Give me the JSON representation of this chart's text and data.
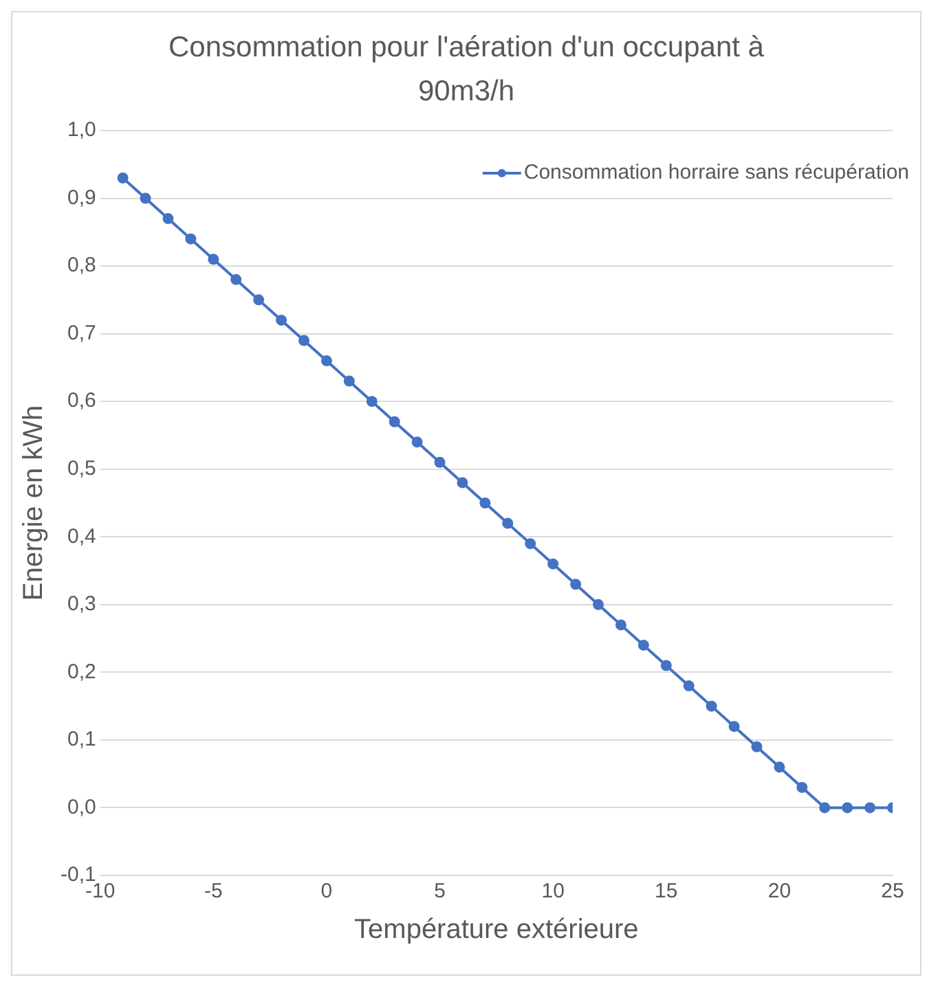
{
  "chart_data": {
    "type": "line",
    "title": "Consommation pour l'aération d'un occupant à 90m3/h",
    "xlabel": "Température extérieure",
    "ylabel": "Energie en kWh",
    "x": [
      -9,
      -8,
      -7,
      -6,
      -5,
      -4,
      -3,
      -2,
      -1,
      0,
      1,
      2,
      3,
      4,
      5,
      6,
      7,
      8,
      9,
      10,
      11,
      12,
      13,
      14,
      15,
      16,
      17,
      18,
      19,
      20,
      21,
      22,
      23,
      24,
      25
    ],
    "series": [
      {
        "name": "Consommation horraire sans récupération",
        "color": "#4472c4",
        "values": [
          0.93,
          0.9,
          0.87,
          0.84,
          0.81,
          0.78,
          0.75,
          0.72,
          0.69,
          0.66,
          0.63,
          0.6,
          0.57,
          0.54,
          0.51,
          0.48,
          0.45,
          0.42,
          0.39,
          0.36,
          0.33,
          0.3,
          0.27,
          0.24,
          0.21,
          0.18,
          0.15,
          0.12,
          0.09,
          0.06,
          0.03,
          0,
          0,
          0,
          0
        ]
      }
    ],
    "xlim": [
      -10,
      25
    ],
    "xticks": [
      -10,
      -5,
      0,
      5,
      10,
      15,
      20,
      25
    ],
    "ylim": [
      -0.1,
      1.0
    ],
    "yticks": [
      {
        "value": -0.1,
        "label": "-0,1"
      },
      {
        "value": 0,
        "label": "0,0"
      },
      {
        "value": 0.1,
        "label": "0,1"
      },
      {
        "value": 0.2,
        "label": "0,2"
      },
      {
        "value": 0.3,
        "label": "0,3"
      },
      {
        "value": 0.4,
        "label": "0,4"
      },
      {
        "value": 0.5,
        "label": "0,5"
      },
      {
        "value": 0.6,
        "label": "0,6"
      },
      {
        "value": 0.7,
        "label": "0,7"
      },
      {
        "value": 0.8,
        "label": "0,8"
      },
      {
        "value": 0.9,
        "label": "0,9"
      },
      {
        "value": 1.0,
        "label": "1,0"
      }
    ],
    "grid": "y",
    "legend": "top right",
    "marker": "circle",
    "line_style": "solid"
  }
}
